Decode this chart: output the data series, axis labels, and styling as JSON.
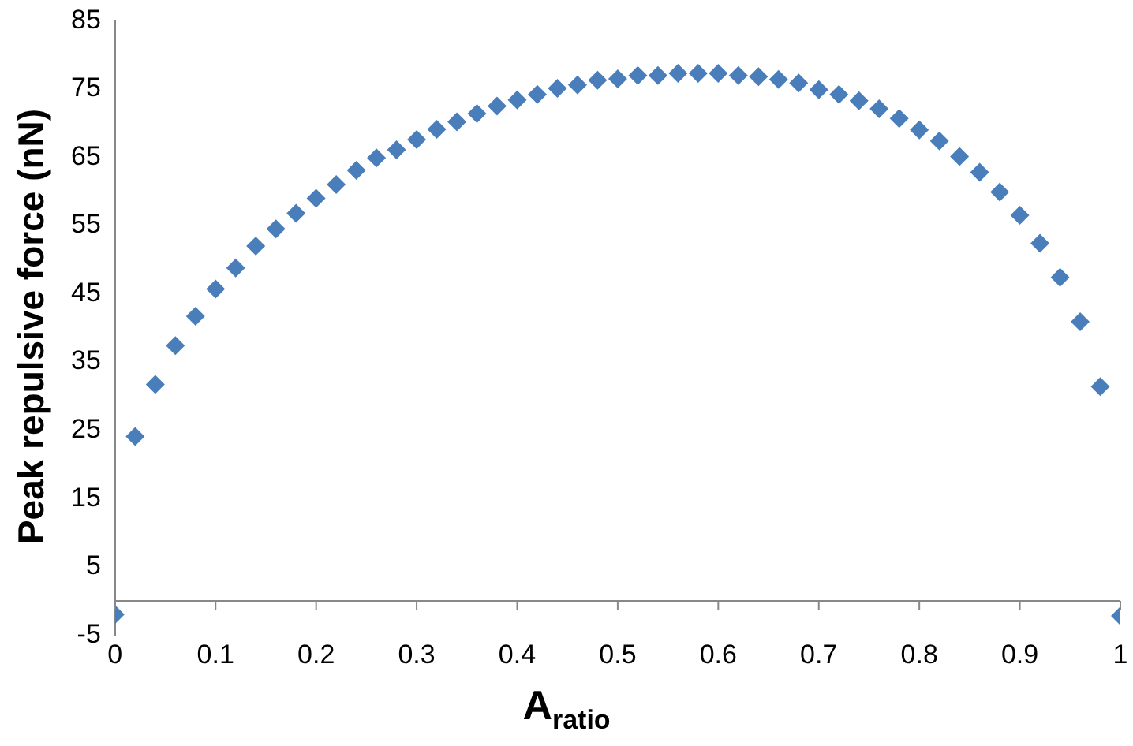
{
  "chart_data": {
    "type": "scatter",
    "xlabel": "A$_{ratio}$",
    "ylabel": "Peak repulsive force (nN)",
    "x": [
      0,
      0.02,
      0.04,
      0.06,
      0.08,
      0.1,
      0.12,
      0.14,
      0.16,
      0.18,
      0.2,
      0.22,
      0.24,
      0.26,
      0.28,
      0.3,
      0.32,
      0.34,
      0.36,
      0.38,
      0.4,
      0.42,
      0.44,
      0.46,
      0.48,
      0.5,
      0.52,
      0.54,
      0.56,
      0.58,
      0.6,
      0.62,
      0.64,
      0.66,
      0.68,
      0.7,
      0.72,
      0.74,
      0.76,
      0.78,
      0.8,
      0.82,
      0.84,
      0.86,
      0.88,
      0.9,
      0.92,
      0.94,
      0.96,
      0.98,
      1
    ],
    "series": [
      {
        "color": "#4a7ebb",
        "values": [
          -2,
          24.1,
          31.7,
          37.4,
          41.7,
          45.7,
          48.8,
          52,
          54.5,
          56.8,
          59,
          61,
          63.1,
          64.9,
          66.1,
          67.6,
          69.1,
          70.2,
          71.4,
          72.5,
          73.4,
          74.2,
          75.1,
          75.6,
          76.3,
          76.5,
          77,
          77,
          77.3,
          77.3,
          77.3,
          77,
          76.8,
          76.4,
          75.9,
          74.9,
          74.2,
          73.3,
          72.1,
          70.7,
          69,
          67.4,
          65.1,
          62.8,
          59.9,
          56.5,
          52.4,
          47.4,
          40.9,
          31.4,
          -2.2
        ]
      }
    ],
    "xlim": [
      0,
      1
    ],
    "xticks": [
      0,
      0.1,
      0.2,
      0.3,
      0.4,
      0.5,
      0.6,
      0.7,
      0.8,
      0.9,
      1
    ],
    "ylim": [
      -5,
      85
    ],
    "yticks": [
      -5,
      5,
      15,
      25,
      35,
      45,
      55,
      65,
      75,
      85
    ],
    "grid": false,
    "legend": false,
    "marker": "diamond"
  }
}
